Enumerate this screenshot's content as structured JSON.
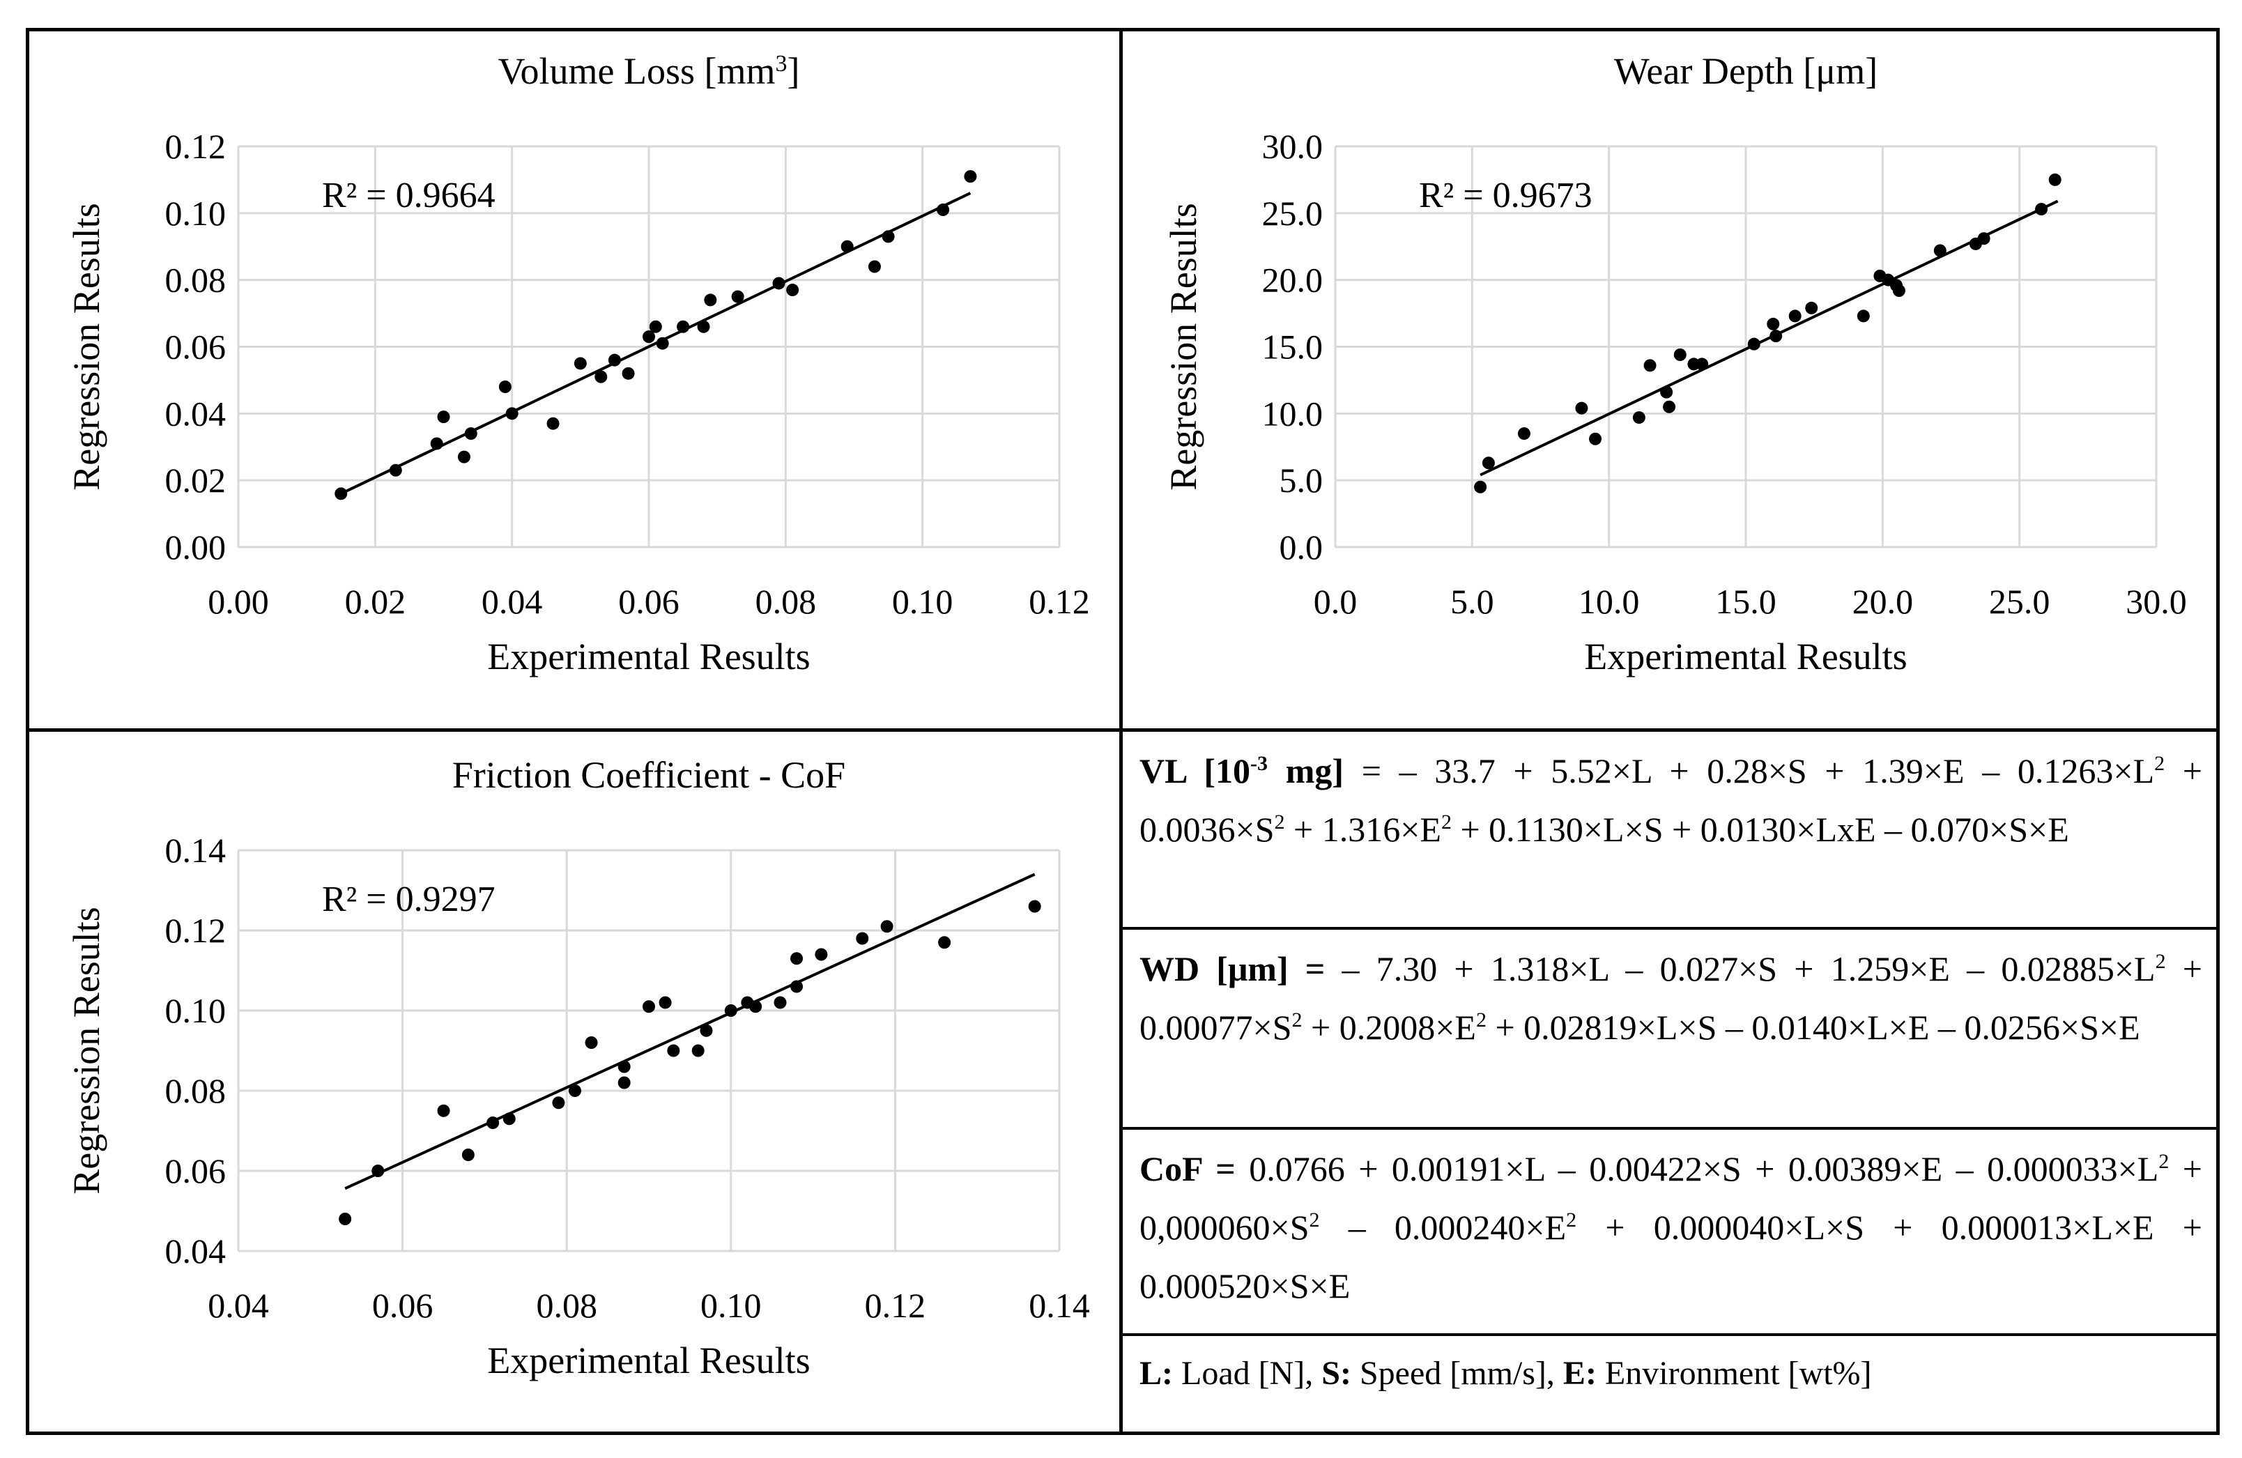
{
  "chart_data": [
    {
      "type": "scatter",
      "title_main": "Volume Loss [mm",
      "title_sup": "3",
      "title_end": "]",
      "xlabel": "Experimental Results",
      "ylabel": "Regression Results",
      "xlim": [
        0,
        0.12
      ],
      "ylim": [
        0,
        0.12
      ],
      "xticks": [
        "0.00",
        "0.02",
        "0.04",
        "0.06",
        "0.08",
        "0.10",
        "0.12"
      ],
      "yticks": [
        "0.00",
        "0.02",
        "0.04",
        "0.06",
        "0.08",
        "0.10",
        "0.12"
      ],
      "xtick_values": [
        0,
        0.02,
        0.04,
        0.06,
        0.08,
        0.1,
        0.12
      ],
      "ytick_values": [
        0,
        0.02,
        0.04,
        0.06,
        0.08,
        0.1,
        0.12
      ],
      "r2_label": "R² = 0.9664",
      "grid": true,
      "trendline": [
        [
          0.015,
          0.016
        ],
        [
          0.107,
          0.106
        ]
      ],
      "points": [
        [
          0.015,
          0.016
        ],
        [
          0.023,
          0.023
        ],
        [
          0.029,
          0.031
        ],
        [
          0.03,
          0.039
        ],
        [
          0.033,
          0.027
        ],
        [
          0.034,
          0.034
        ],
        [
          0.039,
          0.048
        ],
        [
          0.04,
          0.04
        ],
        [
          0.046,
          0.037
        ],
        [
          0.05,
          0.055
        ],
        [
          0.053,
          0.051
        ],
        [
          0.055,
          0.056
        ],
        [
          0.057,
          0.052
        ],
        [
          0.06,
          0.063
        ],
        [
          0.061,
          0.066
        ],
        [
          0.062,
          0.061
        ],
        [
          0.065,
          0.066
        ],
        [
          0.068,
          0.066
        ],
        [
          0.069,
          0.074
        ],
        [
          0.073,
          0.075
        ],
        [
          0.079,
          0.079
        ],
        [
          0.081,
          0.077
        ],
        [
          0.089,
          0.09
        ],
        [
          0.093,
          0.084
        ],
        [
          0.095,
          0.093
        ],
        [
          0.103,
          0.101
        ],
        [
          0.107,
          0.111
        ]
      ]
    },
    {
      "type": "scatter",
      "title_main": "Wear Depth [μm]",
      "title_sup": "",
      "title_end": "",
      "xlabel": "Experimental Results",
      "ylabel": "Regression Results",
      "xlim": [
        0,
        30
      ],
      "ylim": [
        0,
        30
      ],
      "xticks": [
        "0.0",
        "5.0",
        "10.0",
        "15.0",
        "20.0",
        "25.0",
        "30.0"
      ],
      "yticks": [
        "0.0",
        "5.0",
        "10.0",
        "15.0",
        "20.0",
        "25.0",
        "30.0"
      ],
      "xtick_values": [
        0,
        5,
        10,
        15,
        20,
        25,
        30
      ],
      "ytick_values": [
        0,
        5,
        10,
        15,
        20,
        25,
        30
      ],
      "r2_label": "R² = 0.9673",
      "grid": true,
      "trendline": [
        [
          5.3,
          5.4
        ],
        [
          26.4,
          25.9
        ]
      ],
      "points": [
        [
          5.3,
          4.5
        ],
        [
          5.6,
          6.3
        ],
        [
          6.9,
          8.5
        ],
        [
          9.0,
          10.4
        ],
        [
          9.5,
          8.1
        ],
        [
          11.1,
          9.7
        ],
        [
          11.5,
          13.6
        ],
        [
          12.1,
          11.6
        ],
        [
          12.2,
          10.5
        ],
        [
          12.6,
          14.4
        ],
        [
          13.1,
          13.7
        ],
        [
          13.4,
          13.7
        ],
        [
          15.3,
          15.2
        ],
        [
          16.0,
          16.7
        ],
        [
          16.1,
          15.8
        ],
        [
          16.8,
          17.3
        ],
        [
          17.4,
          17.9
        ],
        [
          19.3,
          17.3
        ],
        [
          19.9,
          20.3
        ],
        [
          20.2,
          20.0
        ],
        [
          20.5,
          19.6
        ],
        [
          20.6,
          19.2
        ],
        [
          22.1,
          22.2
        ],
        [
          23.4,
          22.7
        ],
        [
          23.7,
          23.1
        ],
        [
          25.8,
          25.3
        ],
        [
          26.3,
          27.5
        ]
      ]
    },
    {
      "type": "scatter",
      "title_main": "Friction Coefficient - CoF",
      "title_sup": "",
      "title_end": "",
      "xlabel": "Experimental Results",
      "ylabel": "Regression Results",
      "xlim": [
        0.04,
        0.14
      ],
      "ylim": [
        0.04,
        0.14
      ],
      "xticks": [
        "0.04",
        "0.06",
        "0.08",
        "0.10",
        "0.12",
        "0.14"
      ],
      "yticks": [
        "0.04",
        "0.06",
        "0.08",
        "0.10",
        "0.12",
        "0.14"
      ],
      "xtick_values": [
        0.04,
        0.06,
        0.08,
        0.1,
        0.12,
        0.14
      ],
      "ytick_values": [
        0.04,
        0.06,
        0.08,
        0.1,
        0.12,
        0.14
      ],
      "r2_label": "R² = 0.9297",
      "grid": true,
      "trendline": [
        [
          0.053,
          0.0556
        ],
        [
          0.137,
          0.134
        ]
      ],
      "points": [
        [
          0.053,
          0.048
        ],
        [
          0.057,
          0.06
        ],
        [
          0.065,
          0.075
        ],
        [
          0.068,
          0.064
        ],
        [
          0.071,
          0.072
        ],
        [
          0.073,
          0.073
        ],
        [
          0.079,
          0.077
        ],
        [
          0.081,
          0.08
        ],
        [
          0.083,
          0.092
        ],
        [
          0.087,
          0.086
        ],
        [
          0.087,
          0.082
        ],
        [
          0.09,
          0.101
        ],
        [
          0.092,
          0.102
        ],
        [
          0.093,
          0.09
        ],
        [
          0.096,
          0.09
        ],
        [
          0.097,
          0.095
        ],
        [
          0.1,
          0.1
        ],
        [
          0.102,
          0.102
        ],
        [
          0.103,
          0.101
        ],
        [
          0.106,
          0.102
        ],
        [
          0.108,
          0.106
        ],
        [
          0.108,
          0.113
        ],
        [
          0.111,
          0.114
        ],
        [
          0.116,
          0.118
        ],
        [
          0.119,
          0.121
        ],
        [
          0.126,
          0.117
        ],
        [
          0.137,
          0.126
        ]
      ]
    }
  ],
  "equations": {
    "vl": {
      "label": "VL  [10",
      "label_sup": "-3",
      "label_end": " mg]",
      "p1": " = – 33.7 + 5.52×L + 0.28×S + 1.39×E – 0.1263×L",
      "s1": "2",
      "p2": " + 0.0036×S",
      "s2": "2",
      "p3": "  + 1.316×E",
      "s3": "2",
      "p4": "  + 0.1130×L×S + 0.0130×LxE – 0.070×S×E"
    },
    "wd": {
      "label": "WD  [μm]  =",
      "p1": " – 7.30 + 1.318×L – 0.027×S + 1.259×E – 0.02885×L",
      "s1": "2",
      "p2": " + 0.00077×S",
      "s2": "2",
      "p3": " + 0.2008×E",
      "s3": "2",
      "p4": " + 0.02819×L×S – 0.0140×L×E – 0.0256×S×E"
    },
    "cof": {
      "label": "CoF  =",
      "p1": " 0.0766 + 0.00191×L – 0.00422×S + 0.00389×E – 0.000033×L",
      "s1": "2",
      "p2": " + 0,000060×S",
      "s2": "2",
      "p3": " – 0.000240×E",
      "s3": "2",
      "p4": " + 0.000040×L×S + 0.000013×L×E + 0.000520×S×E"
    }
  },
  "legend": {
    "l_key": "L:",
    "l_text": " Load [N], ",
    "s_key": "S:",
    "s_text": " Speed [mm/s], ",
    "e_key": "E:",
    "e_text": " Environment [wt%]"
  }
}
